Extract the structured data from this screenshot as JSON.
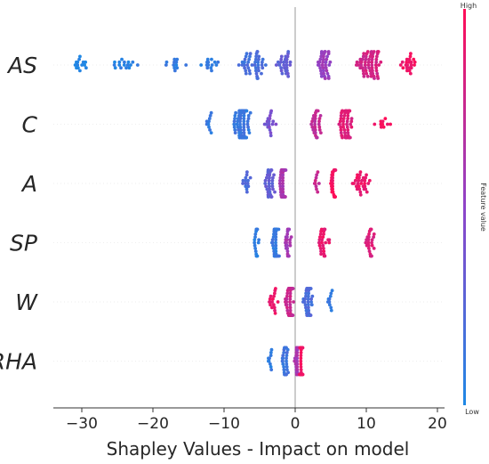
{
  "chart_data": {
    "type": "scatter",
    "subtype": "shap-beeswarm",
    "title": "",
    "xlabel": "Shapley Values - Impact on model",
    "xlim": [
      -34,
      21
    ],
    "xticks": [
      -30,
      -20,
      -10,
      0,
      10,
      20
    ],
    "xtick_labels": [
      "−30",
      "−20",
      "−10",
      "0",
      "10",
      "20"
    ],
    "zero_line": 0,
    "colorbar": {
      "label": "Feature value",
      "high_label": "High",
      "low_label": "Low",
      "low_color": "#1E88E5",
      "high_color": "#FF0D57"
    },
    "features": [
      {
        "name": "AS",
        "clusters": [
          {
            "center": -30.5,
            "spread": 2.2,
            "count": 14,
            "feature_value": 0.02
          },
          {
            "center": -24.0,
            "spread": 2.4,
            "count": 16,
            "feature_value": 0.05
          },
          {
            "center": -17.0,
            "spread": 2.0,
            "count": 12,
            "feature_value": 0.08
          },
          {
            "center": -12.0,
            "spread": 1.5,
            "count": 14,
            "feature_value": 0.1
          },
          {
            "center": -6.0,
            "spread": 2.2,
            "count": 45,
            "feature_value": 0.18
          },
          {
            "center": -1.5,
            "spread": 1.3,
            "count": 28,
            "feature_value": 0.3
          },
          {
            "center": 4.0,
            "spread": 1.4,
            "count": 38,
            "feature_value": 0.55
          },
          {
            "center": 10.5,
            "spread": 2.2,
            "count": 60,
            "feature_value": 0.8
          },
          {
            "center": 16.0,
            "spread": 1.4,
            "count": 22,
            "feature_value": 0.93
          }
        ]
      },
      {
        "name": "C",
        "clusters": [
          {
            "center": -12.0,
            "spread": 0.8,
            "count": 10,
            "feature_value": 0.1
          },
          {
            "center": -7.5,
            "spread": 1.6,
            "count": 85,
            "feature_value": 0.12
          },
          {
            "center": -3.5,
            "spread": 1.0,
            "count": 18,
            "feature_value": 0.4
          },
          {
            "center": 3.0,
            "spread": 1.3,
            "count": 30,
            "feature_value": 0.72
          },
          {
            "center": 7.0,
            "spread": 1.6,
            "count": 55,
            "feature_value": 0.85
          },
          {
            "center": 12.5,
            "spread": 1.6,
            "count": 10,
            "feature_value": 0.95
          }
        ]
      },
      {
        "name": "A",
        "clusters": [
          {
            "center": -7.0,
            "spread": 1.1,
            "count": 14,
            "feature_value": 0.2
          },
          {
            "center": -3.5,
            "spread": 1.0,
            "count": 35,
            "feature_value": 0.3
          },
          {
            "center": -1.7,
            "spread": 0.6,
            "count": 65,
            "feature_value": 0.62
          },
          {
            "center": 2.8,
            "spread": 0.8,
            "count": 10,
            "feature_value": 0.75
          },
          {
            "center": 5.3,
            "spread": 0.6,
            "count": 30,
            "feature_value": 0.95
          },
          {
            "center": 9.5,
            "spread": 2.0,
            "count": 30,
            "feature_value": 0.92
          }
        ]
      },
      {
        "name": "SP",
        "clusters": [
          {
            "center": -5.5,
            "spread": 0.5,
            "count": 18,
            "feature_value": 0.08
          },
          {
            "center": -2.8,
            "spread": 0.6,
            "count": 60,
            "feature_value": 0.12
          },
          {
            "center": -1.0,
            "spread": 0.6,
            "count": 25,
            "feature_value": 0.6
          },
          {
            "center": 4.0,
            "spread": 1.2,
            "count": 28,
            "feature_value": 0.9
          },
          {
            "center": 10.5,
            "spread": 1.2,
            "count": 25,
            "feature_value": 0.85
          }
        ]
      },
      {
        "name": "W",
        "clusters": [
          {
            "center": -3.0,
            "spread": 0.8,
            "count": 16,
            "feature_value": 0.92
          },
          {
            "center": -0.8,
            "spread": 0.8,
            "count": 60,
            "feature_value": 0.75
          },
          {
            "center": 1.8,
            "spread": 1.0,
            "count": 40,
            "feature_value": 0.2
          },
          {
            "center": 5.0,
            "spread": 0.8,
            "count": 10,
            "feature_value": 0.1
          }
        ]
      },
      {
        "name": "RHA",
        "clusters": [
          {
            "center": -3.5,
            "spread": 0.7,
            "count": 10,
            "feature_value": 0.08
          },
          {
            "center": -1.4,
            "spread": 0.6,
            "count": 40,
            "feature_value": 0.15
          },
          {
            "center": 0.2,
            "spread": 0.4,
            "count": 25,
            "feature_value": 0.6
          },
          {
            "center": 0.9,
            "spread": 0.35,
            "count": 45,
            "feature_value": 0.95
          }
        ]
      }
    ]
  }
}
